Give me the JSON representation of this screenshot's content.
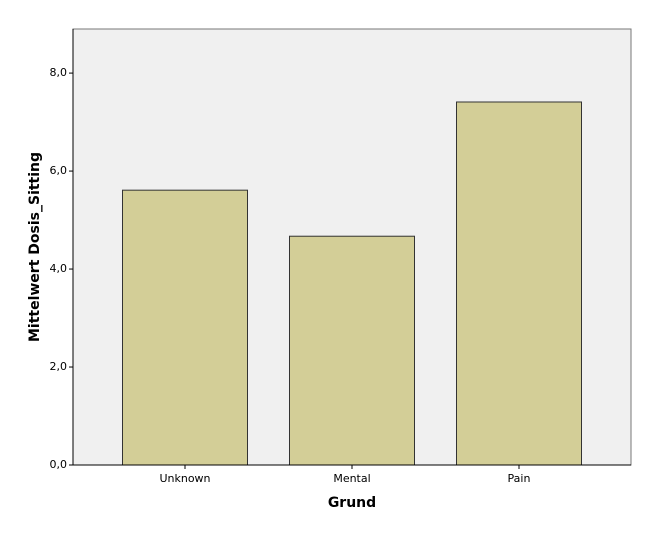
{
  "chart_data": {
    "type": "bar",
    "x_label": "Grund",
    "y_label": "Mittelwert Dosis_Sitting",
    "categories": [
      "Unknown",
      "Mental",
      "Pain"
    ],
    "values": [
      5.61,
      4.67,
      7.41
    ],
    "color": "#d3ce97",
    "ylim": [
      0,
      8.9
    ],
    "yticks": [
      {
        "value": 0,
        "label": "0,0"
      },
      {
        "value": 2,
        "label": "2,0"
      },
      {
        "value": 4,
        "label": "4,0"
      },
      {
        "value": 6,
        "label": "6,0"
      },
      {
        "value": 8,
        "label": "8,0"
      }
    ],
    "grid": false
  }
}
